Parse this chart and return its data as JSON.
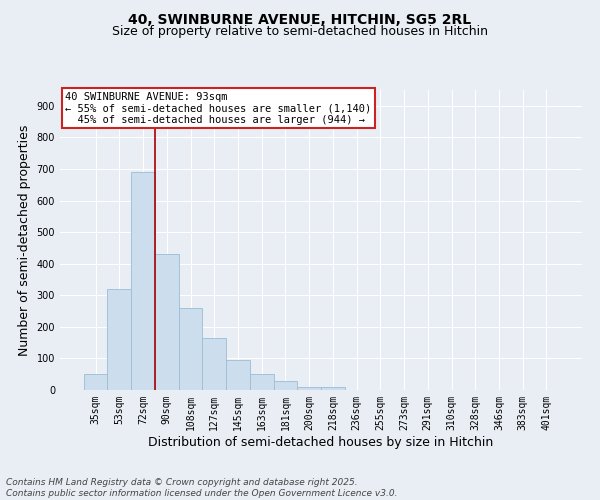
{
  "title_line1": "40, SWINBURNE AVENUE, HITCHIN, SG5 2RL",
  "title_line2": "Size of property relative to semi-detached houses in Hitchin",
  "xlabel": "Distribution of semi-detached houses by size in Hitchin",
  "ylabel": "Number of semi-detached properties",
  "categories": [
    "35sqm",
    "53sqm",
    "72sqm",
    "90sqm",
    "108sqm",
    "127sqm",
    "145sqm",
    "163sqm",
    "181sqm",
    "200sqm",
    "218sqm",
    "236sqm",
    "255sqm",
    "273sqm",
    "291sqm",
    "310sqm",
    "328sqm",
    "346sqm",
    "383sqm",
    "401sqm"
  ],
  "values": [
    50,
    320,
    690,
    430,
    260,
    165,
    95,
    50,
    30,
    10,
    8,
    0,
    0,
    0,
    0,
    0,
    0,
    0,
    0,
    0
  ],
  "bar_color": "#ccdded",
  "bar_edgecolor": "#9bbdd4",
  "vline_color": "#aa0000",
  "annotation_text": "40 SWINBURNE AVENUE: 93sqm\n← 55% of semi-detached houses are smaller (1,140)\n  45% of semi-detached houses are larger (944) →",
  "annotation_box_facecolor": "#ffffff",
  "annotation_box_edgecolor": "#cc2222",
  "ylim": [
    0,
    950
  ],
  "yticks": [
    0,
    100,
    200,
    300,
    400,
    500,
    600,
    700,
    800,
    900
  ],
  "footer_text": "Contains HM Land Registry data © Crown copyright and database right 2025.\nContains public sector information licensed under the Open Government Licence v3.0.",
  "background_color": "#e8eef4",
  "plot_background_color": "#e8eef4",
  "grid_color": "#ffffff",
  "title_fontsize": 10,
  "subtitle_fontsize": 9,
  "axis_label_fontsize": 9,
  "tick_fontsize": 7,
  "annotation_fontsize": 7.5,
  "footer_fontsize": 6.5,
  "vline_xindex": 3
}
